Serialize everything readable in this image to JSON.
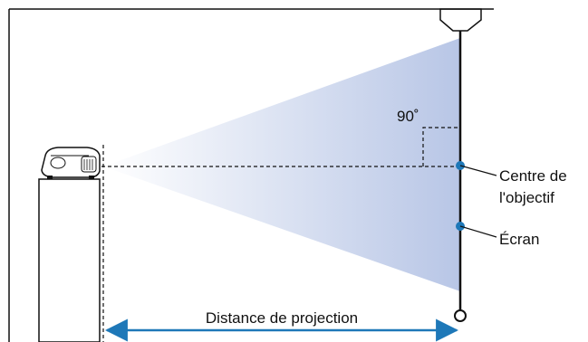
{
  "diagram": {
    "angle_label": "90˚",
    "callouts": {
      "lens_center_line1": "Centre de",
      "lens_center_line2": "l'objectif",
      "screen": "Écran"
    },
    "distance_label": "Distance de projection",
    "colors": {
      "line": "#111111",
      "arrow": "#1e78b8",
      "dot": "#1e78b8",
      "beam_start": "#ffffff",
      "beam_end": "#b8c6e6"
    },
    "icons": {
      "projector": "projector-icon",
      "ceiling_mount": "ceiling-mount-icon"
    }
  }
}
